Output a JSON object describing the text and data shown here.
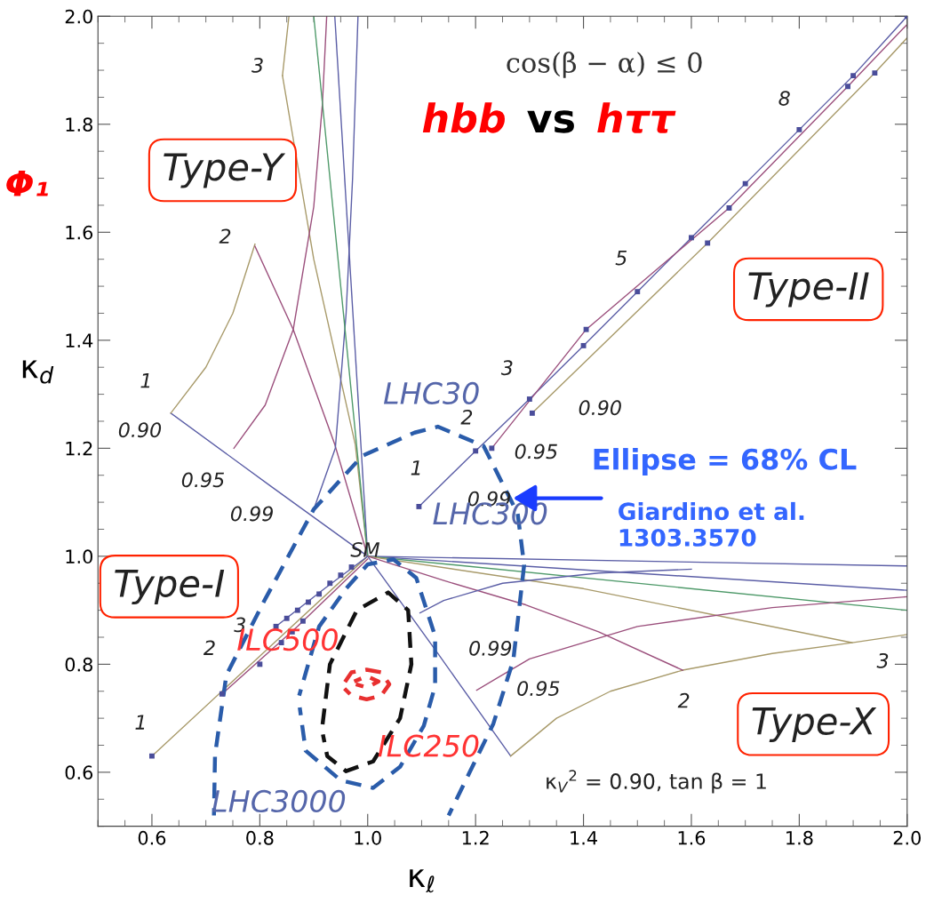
{
  "chart_data": {
    "type": "line",
    "title": "hbb vs hττ",
    "xlabel": "κ$_{ℓ}$",
    "ylabel": "κ$_{d}$",
    "xlim": [
      0.5,
      2.0
    ],
    "ylim": [
      0.5,
      2.0
    ],
    "xticks": [
      {
        "value": 0.6,
        "label": "0.6"
      },
      {
        "value": 0.8,
        "label": "0.8"
      },
      {
        "value": 1.0,
        "label": "1.0"
      },
      {
        "value": 1.2,
        "label": "1.2"
      },
      {
        "value": 1.4,
        "label": "1.4"
      },
      {
        "value": 1.6,
        "label": "1.6"
      },
      {
        "value": 1.8,
        "label": "1.8"
      },
      {
        "value": 2.0,
        "label": "2.0"
      }
    ],
    "yticks": [
      {
        "value": 0.6,
        "label": "0.6"
      },
      {
        "value": 0.8,
        "label": "0.8"
      },
      {
        "value": 1.0,
        "label": "1.0"
      },
      {
        "value": 1.2,
        "label": "1.2"
      },
      {
        "value": 1.4,
        "label": "1.4"
      },
      {
        "value": 1.6,
        "label": "1.6"
      },
      {
        "value": 1.8,
        "label": "1.8"
      },
      {
        "value": 2.0,
        "label": "2.0"
      }
    ],
    "grid": false,
    "series": [
      {
        "color": "#5b5ea6",
        "x": [
          1.095,
          1.2,
          1.3,
          1.4,
          1.5,
          1.6,
          1.7,
          1.8,
          1.9,
          2.0
        ],
        "values": [
          1.092,
          1.195,
          1.291,
          1.39,
          1.49,
          1.59,
          1.69,
          1.79,
          1.89,
          2.0
        ]
      },
      {
        "color": "#9b4f7c",
        "x": [
          1.23,
          1.405,
          1.67,
          1.89,
          2.0
        ],
        "values": [
          1.2,
          1.42,
          1.645,
          1.87,
          1.985
        ]
      },
      {
        "color": "#a89a6a",
        "x": [
          1.305,
          1.63,
          1.94,
          2.0
        ],
        "values": [
          1.265,
          1.58,
          1.895,
          1.96
        ]
      },
      {
        "type": "scatter",
        "marker": "square",
        "color": "#4a4d9a",
        "x": [
          1.095,
          1.2,
          1.3,
          1.4,
          1.5,
          1.6,
          1.7,
          1.8,
          1.9,
          2.0,
          1.23,
          1.405,
          1.67,
          1.89,
          1.305,
          1.63,
          1.94
        ],
        "values": [
          1.092,
          1.195,
          1.291,
          1.39,
          1.49,
          1.59,
          1.69,
          1.79,
          1.89,
          2.0,
          1.2,
          1.42,
          1.645,
          1.87,
          1.265,
          1.58,
          1.895
        ]
      },
      {
        "color": "#5b5ea6",
        "x": [
          0.635,
          0.82,
          1.0,
          1.13,
          1.265
        ],
        "values": [
          1.265,
          1.13,
          1.0,
          0.82,
          0.63
        ]
      },
      {
        "color": "#a89a6a",
        "x": [
          0.635,
          0.7,
          0.75,
          0.791,
          0.82,
          0.842,
          0.854
        ],
        "values": [
          1.265,
          1.35,
          1.45,
          1.578,
          null,
          1.89,
          2.0
        ]
      },
      {
        "color": "#a89a6a",
        "x": [
          0.842,
          0.9,
          0.977,
          1.0
        ],
        "values": [
          1.89,
          1.55,
          1.207,
          1.0
        ]
      },
      {
        "color": "#9b4f7c",
        "x": [
          0.791,
          0.862,
          0.939,
          1.0
        ],
        "values": [
          1.574,
          1.42,
          1.207,
          1.0
        ]
      },
      {
        "color": "#9b4f7c",
        "x": [
          0.752,
          0.81,
          0.862,
          0.9,
          0.916,
          0.924
        ],
        "values": [
          1.2,
          1.28,
          1.42,
          1.647,
          1.837,
          2.0
        ]
      },
      {
        "color": "#5b5ea6",
        "x": [
          0.9,
          0.94,
          0.96,
          0.972,
          0.982
        ],
        "values": [
          1.087,
          1.2,
          1.45,
          1.7,
          2.0
        ]
      },
      {
        "color": "#5b5ea6",
        "x": [
          0.939,
          1.0
        ],
        "values": [
          2.0,
          1.0
        ]
      },
      {
        "color": "#4f9a6a",
        "x": [
          0.9,
          1.0
        ],
        "values": [
          2.0,
          1.0
        ]
      },
      {
        "color": "#5b5ea6",
        "x": [
          1.0,
          2.0
        ],
        "values": [
          1.0,
          0.982
        ]
      },
      {
        "color": "#5b5ea6",
        "x": [
          1.0,
          2.0
        ],
        "values": [
          1.0,
          0.937
        ]
      },
      {
        "color": "#4f9a6a",
        "x": [
          1.0,
          2.0
        ],
        "values": [
          1.0,
          0.9
        ]
      },
      {
        "color": "#a89a6a",
        "x": [
          1.0,
          1.4,
          1.898
        ],
        "values": [
          1.0,
          0.94,
          0.84
        ]
      },
      {
        "color": "#a89a6a",
        "x": [
          1.265,
          1.35,
          1.45,
          1.584,
          1.75,
          1.898,
          2.0
        ],
        "values": [
          0.63,
          0.7,
          0.75,
          0.789,
          0.82,
          0.84,
          0.855
        ]
      },
      {
        "color": "#9b4f7c",
        "x": [
          1.0,
          1.141,
          1.293,
          1.428,
          1.584
        ],
        "values": [
          1.0,
          0.955,
          0.91,
          0.86,
          0.789
        ]
      },
      {
        "color": "#9b4f7c",
        "x": [
          1.202,
          1.3,
          1.5,
          1.75,
          2.0
        ],
        "values": [
          0.752,
          0.81,
          0.87,
          0.905,
          0.925
        ]
      },
      {
        "color": "#5b5ea6",
        "x": [
          1.097,
          1.141,
          1.25,
          1.428,
          1.6
        ],
        "values": [
          0.895,
          0.918,
          0.95,
          0.969,
          0.976
        ]
      },
      {
        "color": "#a89a6a",
        "x": [
          0.6,
          0.8,
          1.0
        ],
        "values": [
          0.63,
          0.815,
          1.0
        ]
      },
      {
        "color": "#9b4f7c",
        "x": [
          0.73,
          0.87,
          1.0
        ],
        "values": [
          0.745,
          0.87,
          0.995
        ]
      },
      {
        "color": "#5b5ea6",
        "x": [
          0.83,
          0.92,
          1.0
        ],
        "values": [
          0.87,
          0.94,
          1.0
        ]
      },
      {
        "type": "scatter",
        "marker": "square",
        "color": "#4a4d9a",
        "x": [
          0.6,
          0.73,
          0.8,
          0.83,
          0.85,
          0.87,
          0.89,
          0.91,
          0.93,
          0.95,
          0.97,
          0.84,
          0.86,
          0.88
        ],
        "values": [
          0.63,
          0.745,
          0.8,
          0.87,
          0.885,
          0.9,
          0.915,
          0.93,
          0.95,
          0.965,
          0.98,
          0.84,
          0.86,
          0.88
        ]
      },
      {
        "line_style": "dashed",
        "color": "#2a5caa",
        "x": [
          0.715,
          0.717,
          0.738,
          0.808,
          0.9,
          0.99,
          1.087,
          1.13,
          1.215,
          1.278,
          1.29,
          1.27,
          1.233,
          1.15
        ],
        "values": [
          0.52,
          0.632,
          0.78,
          0.917,
          1.087,
          1.186,
          1.229,
          1.24,
          1.204,
          1.079,
          0.984,
          0.808,
          0.69,
          0.52
        ]
      },
      {
        "line_style": "dashed",
        "color": "#2a5caa",
        "x": [
          0.873,
          0.91,
          0.96,
          1.0,
          1.048,
          1.09,
          1.125,
          1.125,
          1.104,
          1.06,
          1.01,
          0.95,
          0.885,
          0.874
        ],
        "values": [
          0.742,
          0.87,
          0.94,
          0.985,
          0.994,
          0.96,
          0.852,
          0.76,
          0.686,
          0.61,
          0.571,
          0.585,
          0.64,
          0.72
        ]
      },
      {
        "line_style": "dashed",
        "color": "#111111",
        "x": [
          0.916,
          0.93,
          0.98,
          1.038,
          1.075,
          1.081,
          1.06,
          1.01,
          0.96,
          0.925,
          0.917
        ],
        "values": [
          0.686,
          0.8,
          0.9,
          0.933,
          0.9,
          0.8,
          0.7,
          0.62,
          0.602,
          0.63,
          0.67
        ]
      },
      {
        "line_style": "dashed",
        "color": "#e83030",
        "x": [
          0.955,
          0.97,
          0.998,
          1.025,
          1.04,
          1.025,
          0.998,
          0.97,
          0.957
        ],
        "values": [
          0.763,
          0.785,
          0.79,
          0.785,
          0.763,
          0.742,
          0.735,
          0.742,
          0.755
        ]
      },
      {
        "line_style": "dashed",
        "color": "#e83030",
        "x": [
          0.975,
          0.998,
          1.02,
          0.998,
          0.978
        ],
        "values": [
          0.768,
          0.778,
          0.768,
          0.757,
          0.763
        ]
      }
    ],
    "annotations": [
      "cos(β − α) ≤ 0",
      "Type-Y",
      "Type-II",
      "Type-I",
      "Type-X",
      "Ellipse = 68% CL",
      "Giardino et al.\n1303.3570",
      "κ$_{V}$$^{2}$ = 0.90, tan β = 1",
      "Φ₁",
      {
        "text": "3",
        "x": 0.842,
        "y": 1.89
      },
      {
        "text": "2",
        "x": 0.791,
        "y": 1.578
      },
      {
        "text": "1",
        "x": 0.635,
        "y": 1.265
      },
      {
        "text": "0.90",
        "x": 0.635,
        "y": 1.265
      },
      {
        "text": "0.95",
        "x": 0.752,
        "y": 1.2
      },
      {
        "text": "0.99",
        "x": 0.9,
        "y": 1.087
      },
      {
        "text": "SM",
        "x": 1.0,
        "y": 1.0
      },
      {
        "text": "1",
        "x": 1.095,
        "y": 1.092
      },
      {
        "text": "2",
        "x": 1.2,
        "y": 1.195
      },
      {
        "text": "3",
        "x": 1.3,
        "y": 1.291
      },
      {
        "text": "5",
        "x": 1.5,
        "y": 1.49
      },
      {
        "text": "8",
        "x": 1.8,
        "y": 1.79
      },
      {
        "text": "0.90",
        "x": 1.305,
        "y": 1.265
      },
      {
        "text": "0.95",
        "x": 1.23,
        "y": 1.2
      },
      {
        "text": "0.99",
        "x": 1.095,
        "y": 1.092
      },
      {
        "text": "3",
        "x": 0.83,
        "y": 0.87
      },
      {
        "text": "2",
        "x": 0.73,
        "y": 0.745
      },
      {
        "text": "1",
        "x": 0.6,
        "y": 0.63
      },
      {
        "text": "0.99",
        "x": 1.097,
        "y": 0.895
      },
      {
        "text": "0.95",
        "x": 1.202,
        "y": 0.752
      },
      {
        "text": "2",
        "x": 1.584,
        "y": 0.789
      },
      {
        "text": "3",
        "x": 1.898,
        "y": 0.84
      },
      {
        "text": "LHC30",
        "x": 1.13,
        "y": 1.24
      },
      {
        "text": "LHC300",
        "x": 1.09,
        "y": 0.96
      },
      {
        "text": "LHC3000",
        "x": 0.95,
        "y": 0.585
      },
      {
        "text": "ILC500",
        "x": 0.955,
        "y": 0.763
      },
      {
        "text": "ILC250",
        "x": 1.04,
        "y": 0.763
      }
    ]
  }
}
